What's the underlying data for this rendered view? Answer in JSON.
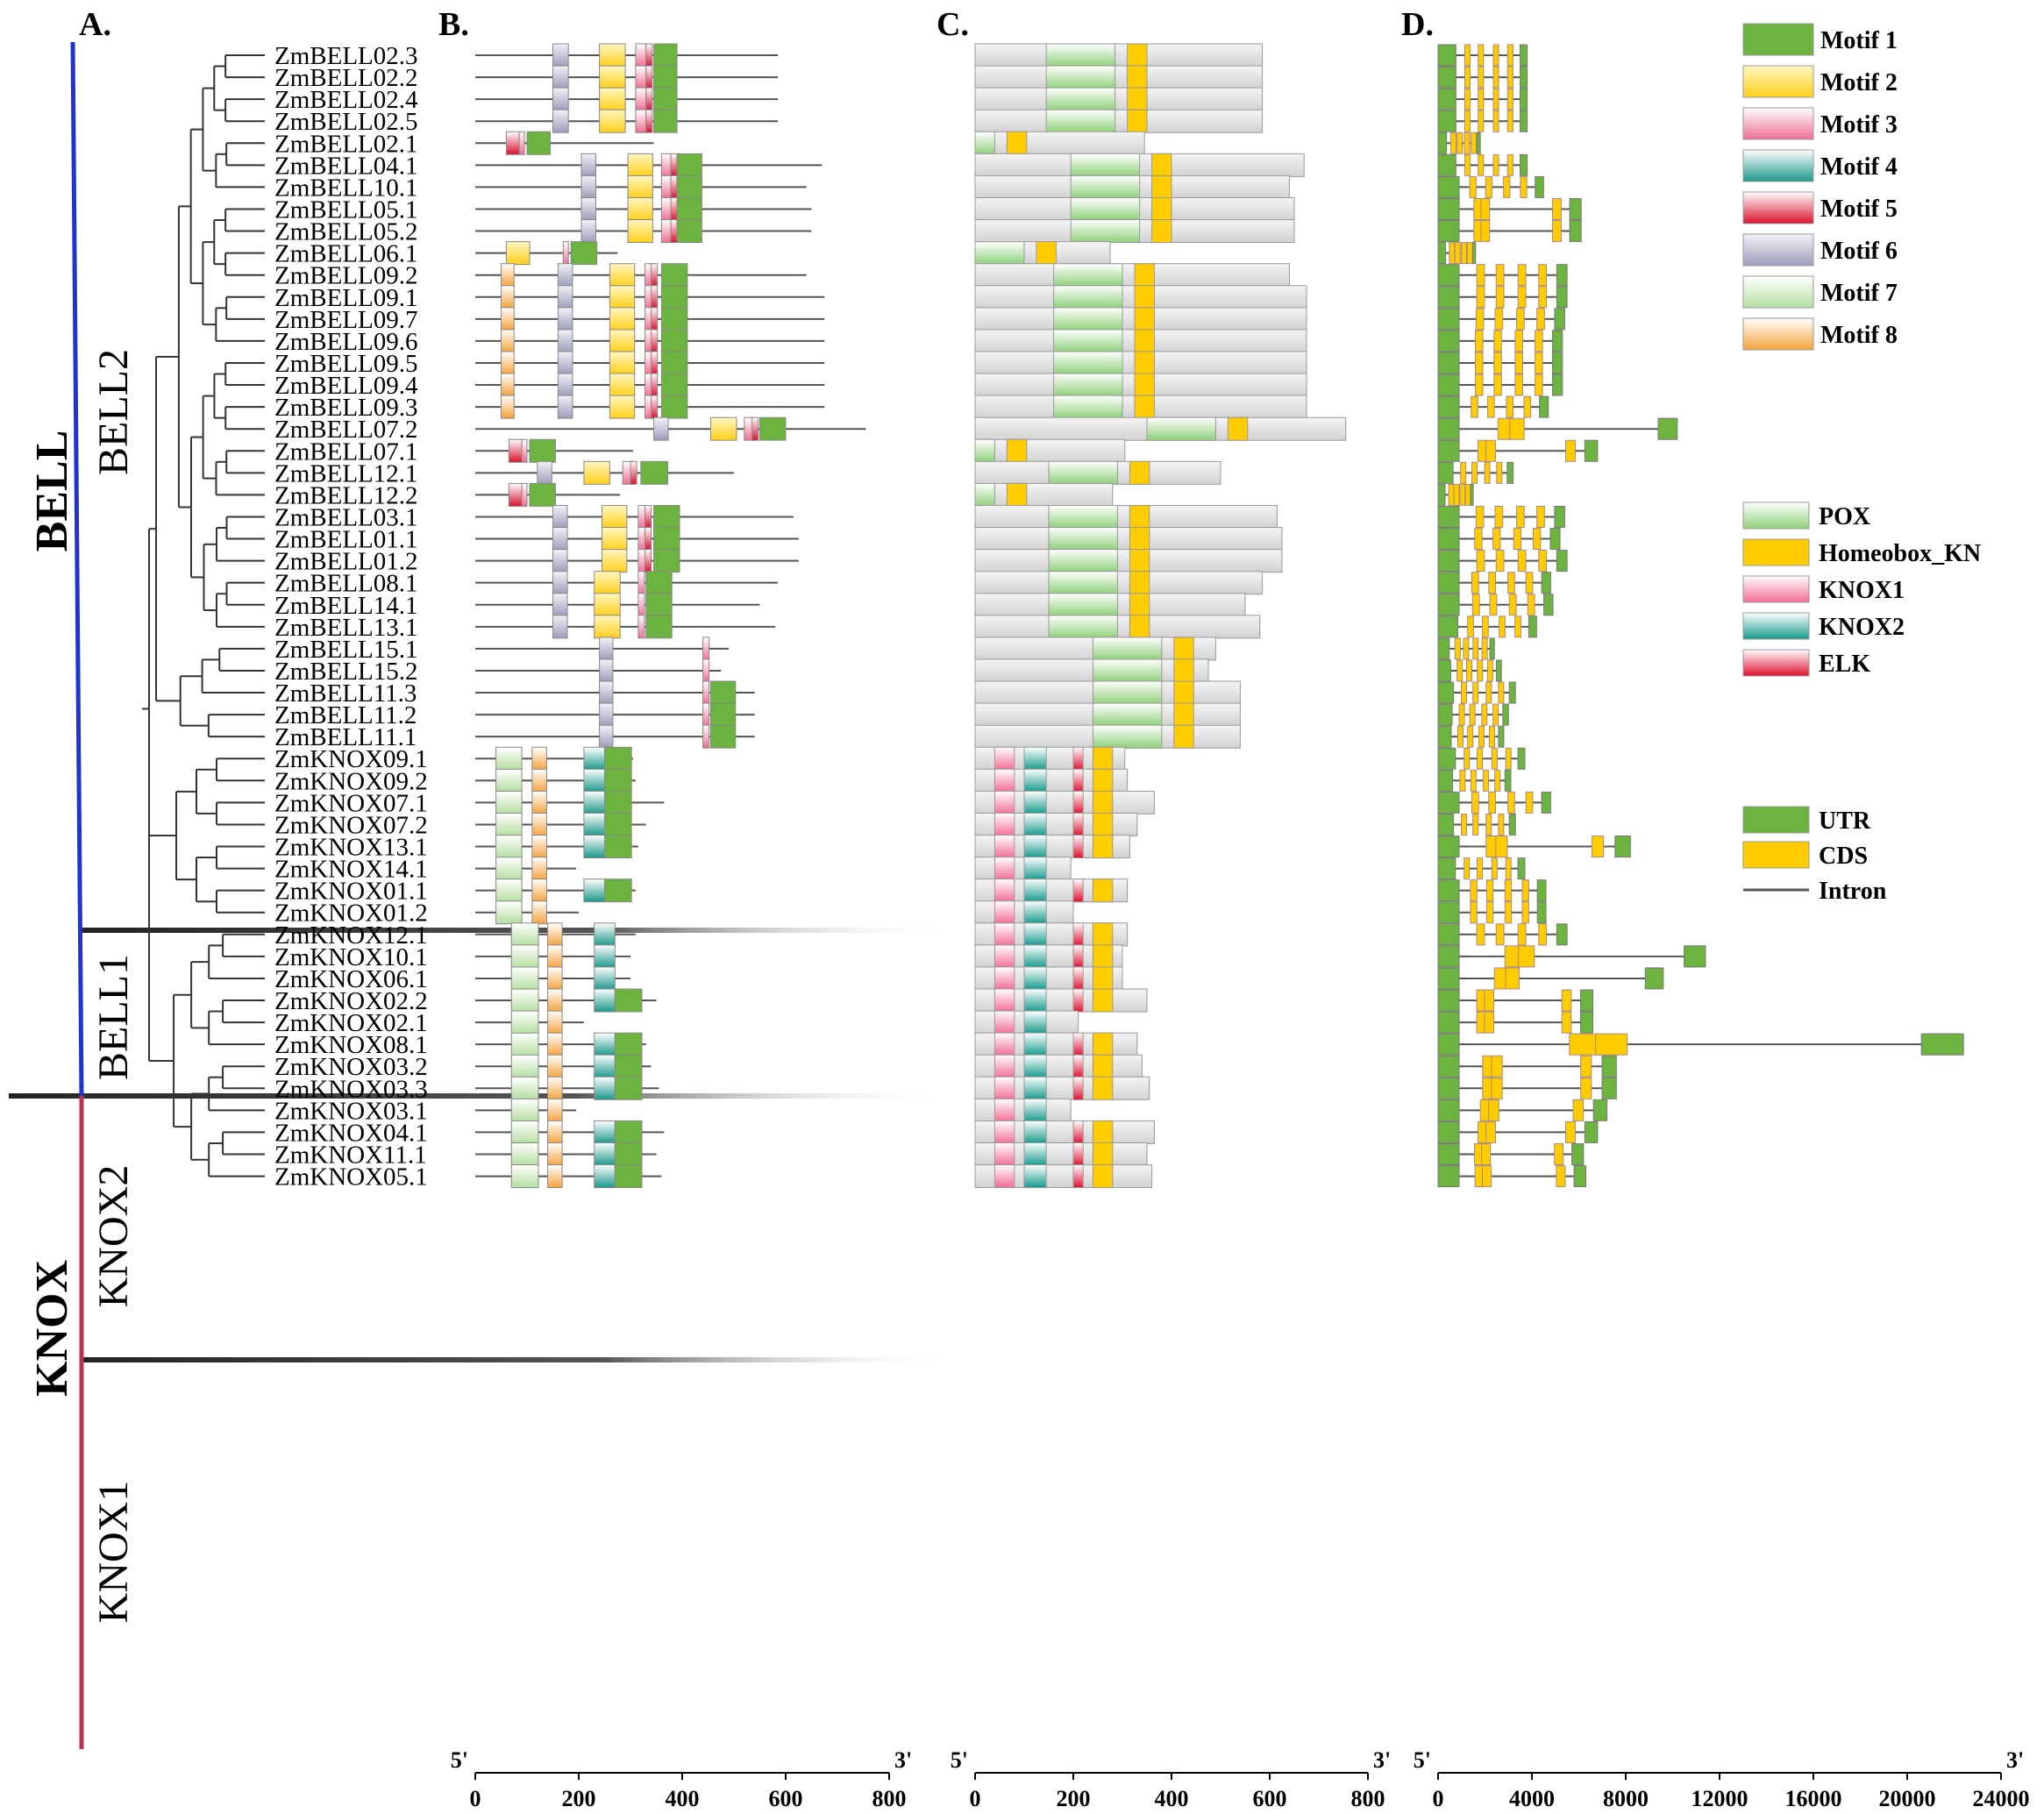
{
  "panels": [
    "A.",
    "B.",
    "C.",
    "D."
  ],
  "families": [
    "BELL",
    "KNOX"
  ],
  "subgroups": [
    "BELL2",
    "BELL1",
    "KNOX2",
    "KNOX1"
  ],
  "genes": [
    "ZmBELL02.3",
    "ZmBELL02.2",
    "ZmBELL02.4",
    "ZmBELL02.5",
    "ZmBELL02.1",
    "ZmBELL04.1",
    "ZmBELL10.1",
    "ZmBELL05.1",
    "ZmBELL05.2",
    "ZmBELL06.1",
    "ZmBELL09.2",
    "ZmBELL09.1",
    "ZmBELL09.7",
    "ZmBELL09.6",
    "ZmBELL09.5",
    "ZmBELL09.4",
    "ZmBELL09.3",
    "ZmBELL07.2",
    "ZmBELL07.1",
    "ZmBELL12.1",
    "ZmBELL12.2",
    "ZmBELL03.1",
    "ZmBELL01.1",
    "ZmBELL01.2",
    "ZmBELL08.1",
    "ZmBELL14.1",
    "ZmBELL13.1",
    "ZmBELL15.1",
    "ZmBELL15.2",
    "ZmBELL11.3",
    "ZmBELL11.2",
    "ZmBELL11.1",
    "ZmKNOX09.1",
    "ZmKNOX09.2",
    "ZmKNOX07.1",
    "ZmKNOX07.2",
    "ZmKNOX13.1",
    "ZmKNOX14.1",
    "ZmKNOX01.1",
    "ZmKNOX01.2",
    "ZmKNOX12.1",
    "ZmKNOX10.1",
    "ZmKNOX06.1",
    "ZmKNOX02.2",
    "ZmKNOX02.1",
    "ZmKNOX08.1",
    "ZmKNOX03.2",
    "ZmKNOX03.3",
    "ZmKNOX03.1",
    "ZmKNOX04.1",
    "ZmKNOX11.1",
    "ZmKNOX05.1"
  ],
  "protein_length": [
    585,
    585,
    585,
    585,
    345,
    670,
    640,
    650,
    650,
    275,
    640,
    675,
    675,
    675,
    675,
    675,
    675,
    755,
    305,
    500,
    280,
    615,
    625,
    625,
    585,
    550,
    580,
    490,
    475,
    540,
    540,
    540,
    305,
    310,
    365,
    330,
    315,
    195,
    310,
    200,
    310,
    300,
    300,
    350,
    210,
    330,
    340,
    355,
    195,
    365,
    350,
    360
  ],
  "gene_length": [
    3800,
    3800,
    3800,
    3800,
    1800,
    3800,
    4500,
    6100,
    6100,
    1600,
    5500,
    5500,
    5400,
    5300,
    5300,
    5300,
    4700,
    10200,
    6800,
    3200,
    1500,
    5400,
    5200,
    5500,
    4800,
    4900,
    4200,
    2400,
    2700,
    3300,
    3000,
    2800,
    3700,
    3100,
    4800,
    3300,
    8200,
    3700,
    4600,
    4600,
    5500,
    11400,
    9600,
    6600,
    6600,
    22400,
    7600,
    7600,
    7200,
    6800,
    6200,
    6300
  ],
  "legend_motif": [
    "Motif 1",
    "Motif 2",
    "Motif 3",
    "Motif 4",
    "Motif 5",
    "Motif 6",
    "Motif 7",
    "Motif 8"
  ],
  "legend_domain": [
    "POX",
    "Homeobox_KN",
    "KNOX1",
    "KNOX2",
    "ELK"
  ],
  "legend_structure": [
    "UTR",
    "CDS",
    "Intron"
  ],
  "axis_B": {
    "ticks": [
      "0",
      "200",
      "400",
      "600",
      "800"
    ],
    "start": "5'",
    "end": "3'",
    "max": 800
  },
  "axis_C": {
    "ticks": [
      "0",
      "200",
      "400",
      "600",
      "800"
    ],
    "start": "5'",
    "end": "3'",
    "max": 800
  },
  "axis_D": {
    "ticks": [
      "0",
      "4000",
      "8000",
      "12000",
      "16000",
      "20000",
      "24000"
    ],
    "start": "5'",
    "end": "3'",
    "max": 24000
  },
  "colors": {
    "utr": "#6db33f",
    "cds": "#ffcc00",
    "intron": "#555555",
    "m1": "#6db33f",
    "m2": "#ffd94a",
    "m3": "#f28aa6",
    "m4": "#2a9e90",
    "m5": "#e0203c",
    "m6": "#a8a8c4",
    "m7": "#c6e6b2",
    "m8": "#f7b35a",
    "bell": "#2233cc",
    "knox": "#c0304a"
  }
}
